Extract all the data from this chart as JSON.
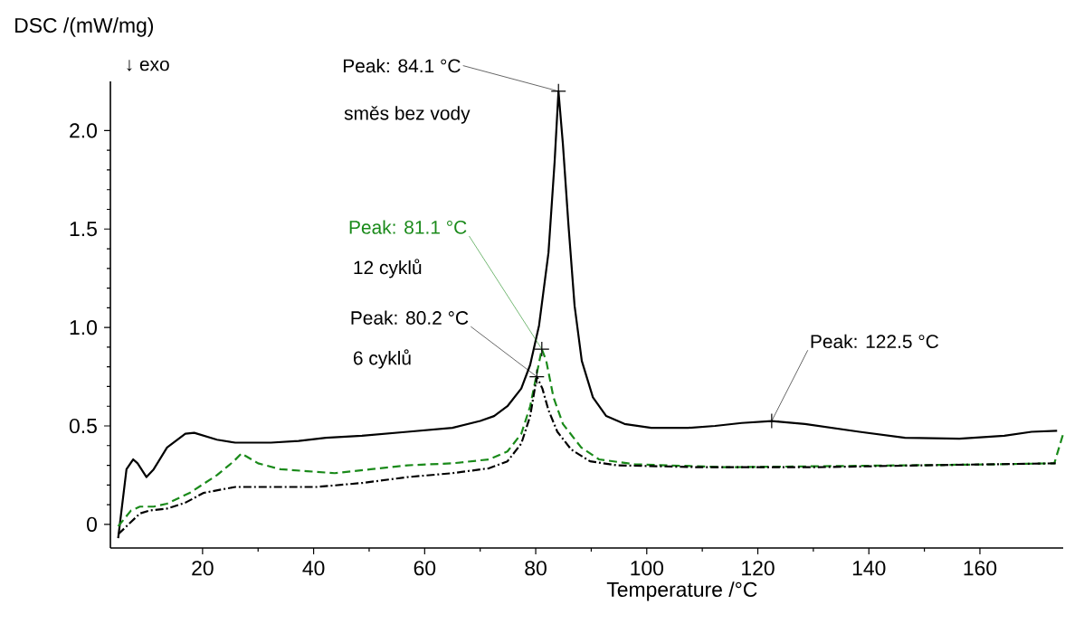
{
  "chart_data": {
    "type": "line",
    "ylabel": "DSC /(mW/mg)",
    "xlabel": "Temperature /°C",
    "xlim": [
      3.4,
      175
    ],
    "ylim": [
      -0.12,
      2.25
    ],
    "xticks": [
      20,
      40,
      60,
      80,
      100,
      120,
      140,
      160
    ],
    "yticks": [
      0,
      {
        "value": 0.5,
        "label": "0.5"
      },
      {
        "value": 1,
        "label": "1.0"
      },
      {
        "value": 1.5,
        "label": "1.5"
      },
      {
        "value": 2,
        "label": "2.0"
      }
    ],
    "series": [
      {
        "color": "#000000",
        "line_style": "solid",
        "x": [
          4.8,
          6.3,
          7.5,
          8.3,
          9.9,
          11.2,
          13.6,
          16.9,
          18.5,
          22.6,
          25.9,
          32.3,
          37.3,
          42.2,
          48.7,
          56.9,
          65,
          70,
          72.5,
          74.9,
          77.4,
          79,
          80.6,
          82.3,
          83.4,
          84.1,
          84.9,
          85.9,
          87,
          88.3,
          90.3,
          92.7,
          96,
          100.8,
          107.4,
          112.3,
          117.1,
          122.5,
          128.5,
          138.3,
          146.5,
          156.3,
          164.4,
          169.3,
          173.9
        ],
        "values": [
          -0.07,
          0.28,
          0.33,
          0.31,
          0.24,
          0.28,
          0.39,
          0.46,
          0.465,
          0.43,
          0.415,
          0.415,
          0.424,
          0.44,
          0.45,
          0.47,
          0.49,
          0.525,
          0.55,
          0.6,
          0.69,
          0.81,
          1.01,
          1.38,
          1.84,
          2.2,
          1.93,
          1.52,
          1.11,
          0.83,
          0.645,
          0.55,
          0.51,
          0.49,
          0.49,
          0.5,
          0.515,
          0.525,
          0.51,
          0.47,
          0.44,
          0.435,
          0.45,
          0.47,
          0.475
        ]
      },
      {
        "color": "#1a8a1a",
        "line_style": "dashed",
        "x": [
          4.8,
          7.1,
          8.7,
          11.2,
          13.6,
          17.7,
          22.6,
          25.6,
          27,
          30,
          34,
          38.9,
          43.8,
          50.3,
          56.9,
          65,
          71.6,
          74.9,
          77.4,
          79,
          80.3,
          81.1,
          81.9,
          83.2,
          84.9,
          88.2,
          91.4,
          97.8,
          114.4,
          130.7,
          147.2,
          163.3,
          173.4,
          175
        ],
        "values": [
          -0.01,
          0.07,
          0.09,
          0.09,
          0.105,
          0.16,
          0.25,
          0.32,
          0.36,
          0.31,
          0.28,
          0.27,
          0.26,
          0.28,
          0.3,
          0.31,
          0.33,
          0.37,
          0.46,
          0.6,
          0.78,
          0.89,
          0.83,
          0.645,
          0.51,
          0.39,
          0.33,
          0.305,
          0.29,
          0.295,
          0.3,
          0.305,
          0.31,
          0.46
        ]
      },
      {
        "color": "#000000",
        "line_style": "dashdot",
        "x": [
          4.8,
          6.3,
          8.7,
          10.4,
          13.6,
          16.9,
          20.2,
          25.9,
          32.3,
          40.6,
          48.7,
          56.9,
          65,
          71.6,
          74.9,
          77.4,
          79,
          80.2,
          81.2,
          82.3,
          83.9,
          86.4,
          89.8,
          94.6,
          110,
          130,
          150,
          173.9
        ],
        "values": [
          -0.05,
          -0.01,
          0.055,
          0.07,
          0.08,
          0.11,
          0.16,
          0.19,
          0.19,
          0.19,
          0.21,
          0.24,
          0.26,
          0.285,
          0.32,
          0.41,
          0.55,
          0.75,
          0.69,
          0.58,
          0.47,
          0.38,
          0.32,
          0.3,
          0.29,
          0.29,
          0.3,
          0.31
        ]
      }
    ],
    "annotations": [
      {
        "text": "Peak: 84.1 °C",
        "x": 84.1,
        "y": 2.2
      },
      "směs bez vody",
      {
        "text": "Peak: 81.1 °C",
        "x": 81.1,
        "y": 0.89
      },
      "12 cyklů",
      {
        "text": "Peak: 80.2 °C",
        "x": 80.2,
        "y": 0.75
      },
      "6 cyklů",
      {
        "text": "Peak: 122.5 °C",
        "x": 122.5,
        "y": 0.525
      },
      "↓  exo"
    ]
  }
}
